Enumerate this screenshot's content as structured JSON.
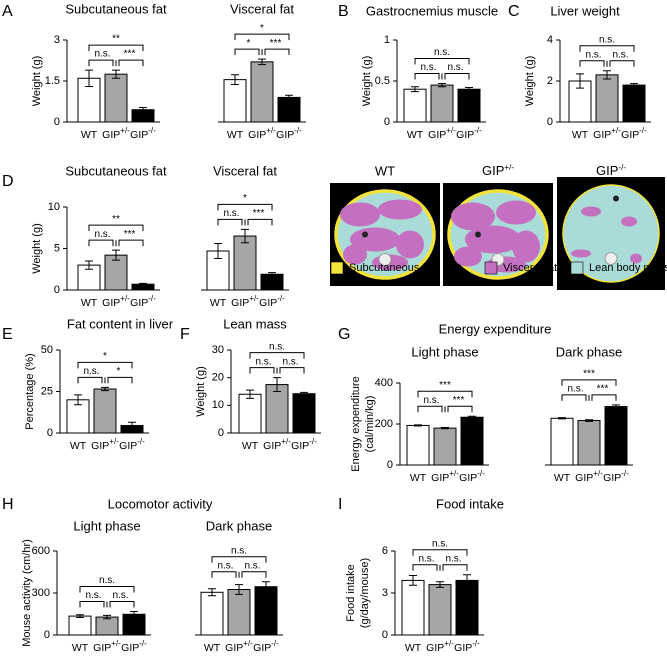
{
  "chart_data": [
    {
      "type": "bar",
      "panel": "A",
      "ylabel": "Weight (g)",
      "ylim": [
        0,
        3
      ],
      "yticks": [
        0,
        1.5,
        3
      ],
      "categories": [
        "WT",
        "GIP+/-",
        "GIP-/-"
      ],
      "colors": [
        "#ffffff",
        "#a6a6a6",
        "#000000"
      ],
      "groups": [
        {
          "title": "Subcutaneous fat",
          "values": [
            1.6,
            1.75,
            0.45
          ],
          "errors": [
            0.3,
            0.15,
            0.08
          ],
          "significance": [
            "**",
            "n.s.",
            "***"
          ]
        },
        {
          "title": "Visceral fat",
          "values": [
            1.55,
            2.2,
            0.9
          ],
          "errors": [
            0.18,
            0.1,
            0.08
          ],
          "significance": [
            "*",
            "*",
            "***"
          ]
        }
      ]
    },
    {
      "type": "bar",
      "panel": "B",
      "title": "Gastrocnemius muscle",
      "ylabel": "Weight (g)",
      "ylim": [
        0,
        1
      ],
      "yticks": [
        0,
        0.5,
        1
      ],
      "categories": [
        "WT",
        "GIP+/-",
        "GIP-/-"
      ],
      "colors": [
        "#ffffff",
        "#a6a6a6",
        "#000000"
      ],
      "groups": [
        {
          "values": [
            0.4,
            0.45,
            0.4
          ],
          "errors": [
            0.03,
            0.02,
            0.02
          ],
          "significance": [
            "n.s.",
            "n.s.",
            "n.s."
          ]
        }
      ]
    },
    {
      "type": "bar",
      "panel": "C",
      "title": "Liver weight",
      "ylabel": "Weight (g)",
      "ylim": [
        0,
        4
      ],
      "yticks": [
        0,
        2,
        4
      ],
      "categories": [
        "WT",
        "GIP+/-",
        "GIP-/-"
      ],
      "colors": [
        "#ffffff",
        "#a6a6a6",
        "#000000"
      ],
      "groups": [
        {
          "values": [
            2.0,
            2.3,
            1.8
          ],
          "errors": [
            0.35,
            0.2,
            0.07
          ],
          "significance": [
            "n.s.",
            "n.s.",
            "n.s."
          ]
        }
      ]
    },
    {
      "type": "bar",
      "panel": "D",
      "ylabel": "Weight (g)",
      "ylim": [
        0,
        10
      ],
      "yticks": [
        0,
        5,
        10
      ],
      "categories": [
        "WT",
        "GIP+/-",
        "GIP-/-"
      ],
      "colors": [
        "#ffffff",
        "#a6a6a6",
        "#000000"
      ],
      "groups": [
        {
          "title": "Subcutaneous fat",
          "values": [
            3.0,
            4.2,
            0.7
          ],
          "errors": [
            0.5,
            0.6,
            0.1
          ],
          "significance": [
            "**",
            "n.s.",
            "***"
          ]
        },
        {
          "title": "Visceral fat",
          "values": [
            4.7,
            6.5,
            1.9
          ],
          "errors": [
            0.9,
            0.8,
            0.2
          ],
          "significance": [
            "*",
            "n.s.",
            "***"
          ]
        }
      ]
    },
    {
      "type": "bar",
      "panel": "E",
      "title": "Fat content in liver",
      "ylabel": "Percentage (%)",
      "ylim": [
        0,
        50
      ],
      "yticks": [
        0,
        25,
        50
      ],
      "categories": [
        "WT",
        "GIP+/-",
        "GIP-/-"
      ],
      "colors": [
        "#ffffff",
        "#a6a6a6",
        "#000000"
      ],
      "groups": [
        {
          "values": [
            20,
            26.5,
            4.5
          ],
          "errors": [
            3,
            1,
            2
          ],
          "significance": [
            "*",
            "n.s.",
            "*"
          ]
        }
      ]
    },
    {
      "type": "bar",
      "panel": "F",
      "title": "Lean mass",
      "ylabel": "Weight (g)",
      "ylim": [
        0,
        30
      ],
      "yticks": [
        0,
        10,
        20,
        30
      ],
      "categories": [
        "WT",
        "GIP+/-",
        "GIP-/-"
      ],
      "colors": [
        "#ffffff",
        "#a6a6a6",
        "#000000"
      ],
      "groups": [
        {
          "values": [
            14,
            17.5,
            14.2
          ],
          "errors": [
            1.5,
            2.5,
            0.5
          ],
          "significance": [
            "n.s.",
            "n.s.",
            "n.s."
          ]
        }
      ]
    },
    {
      "type": "bar",
      "panel": "G",
      "title": "Energy expenditure",
      "ylabel": [
        "Energy expenditure",
        "(cal/min/kg)"
      ],
      "ylim": [
        0,
        400
      ],
      "yticks": [
        0,
        200,
        400
      ],
      "categories": [
        "WT",
        "GIP+/-",
        "GIP-/-"
      ],
      "colors": [
        "#ffffff",
        "#a6a6a6",
        "#000000"
      ],
      "groups": [
        {
          "title": "Light phase",
          "values": [
            193,
            180,
            233
          ],
          "errors": [
            3,
            3,
            5
          ],
          "significance": [
            "***",
            "n.s.",
            "***"
          ]
        },
        {
          "title": "Dark phase",
          "values": [
            228,
            217,
            285
          ],
          "errors": [
            3,
            4,
            8
          ],
          "significance": [
            "***",
            "n.s.",
            "***"
          ]
        }
      ]
    },
    {
      "type": "bar",
      "panel": "H",
      "title": "Locomotor activity",
      "ylabel": "Mouse activity (cm/hr)",
      "ylim": [
        0,
        600
      ],
      "yticks": [
        0,
        300,
        600
      ],
      "categories": [
        "WT",
        "GIP+/-",
        "GIP-/-"
      ],
      "colors": [
        "#ffffff",
        "#a6a6a6",
        "#000000"
      ],
      "groups": [
        {
          "title": "Light phase",
          "values": [
            135,
            128,
            148
          ],
          "errors": [
            10,
            12,
            20
          ],
          "significance": [
            "n.s.",
            "n.s.",
            "n.s."
          ]
        },
        {
          "title": "Dark phase",
          "values": [
            305,
            325,
            345
          ],
          "errors": [
            25,
            35,
            35
          ],
          "significance": [
            "n.s.",
            "n.s.",
            "n.s."
          ]
        }
      ]
    },
    {
      "type": "bar",
      "panel": "I",
      "title": "Food intake",
      "ylabel": [
        "Food intake",
        "(g/day/mouse)"
      ],
      "ylim": [
        0,
        6
      ],
      "yticks": [
        0,
        3,
        6
      ],
      "categories": [
        "WT",
        "GIP+/-",
        "GIP-/-"
      ],
      "colors": [
        "#ffffff",
        "#a6a6a6",
        "#000000"
      ],
      "groups": [
        {
          "values": [
            3.9,
            3.6,
            3.9
          ],
          "errors": [
            0.35,
            0.2,
            0.4
          ],
          "significance": [
            "n.s.",
            "n.s.",
            "n.s."
          ]
        }
      ]
    }
  ],
  "ct_scan": {
    "labels": [
      "WT",
      "GIP+/-",
      "GIP-/-"
    ],
    "legend": [
      {
        "label": "Subcutaneous fat",
        "color": "#f2e33a"
      },
      {
        "label": "Visceral fat",
        "color": "#c46fbf"
      },
      {
        "label": "Lean body mass",
        "color": "#a9dcd9"
      }
    ]
  }
}
